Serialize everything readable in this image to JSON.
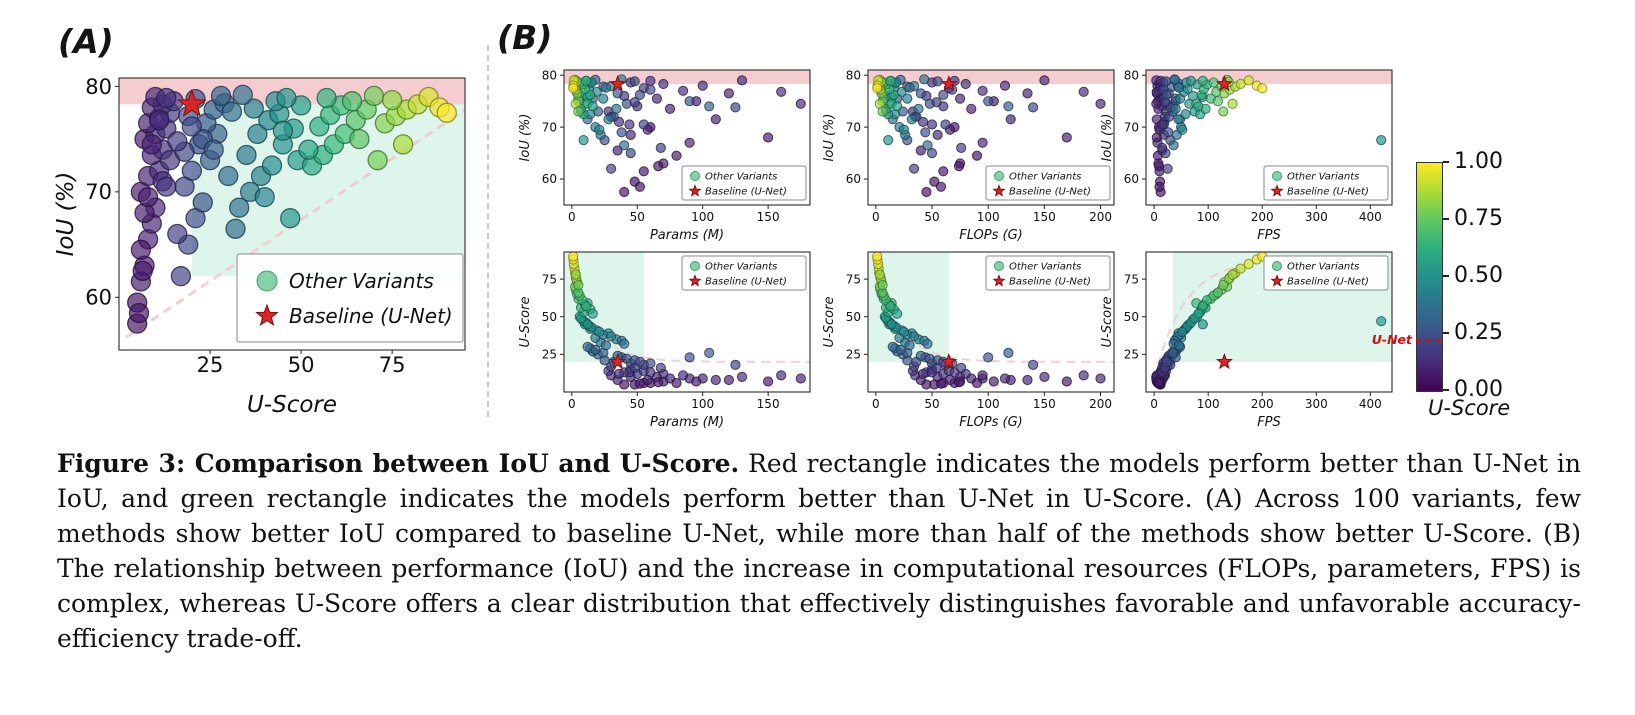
{
  "figure_labels": {
    "a": "(A)",
    "b": "(B)"
  },
  "legend": {
    "other": "Other Variants",
    "baseline": "Baseline (U-Net)"
  },
  "colorbar": {
    "ticks": [
      "1.00",
      "0.75",
      "0.50",
      "0.25",
      "0.00"
    ],
    "label": "U-Score",
    "unet_label": "U-Net",
    "unet_value": 0.22
  },
  "colors": {
    "red_band": "#e0606e",
    "green_band": "#62d29e",
    "curve_dash": "#f0c7ce",
    "star": "#d62728",
    "star_edge": "#7f1010",
    "legend_dot": "#6fca97",
    "legend_dot_edge": "#459a72",
    "divider": "#c9c9c9",
    "unet_line": "#cc1111"
  },
  "caption": {
    "bold": "Figure 3: Comparison between IoU and U-Score.",
    "body": " Red rectangle indicates the models perform better than U-Net in IoU, and green rectangle indicates the models perform better than U-Net in U-Score. (A) Across 100 variants, few methods show better IoU compared to baseline U-Net, while more than half of the methods show better U-Score. (B) The relationship between performance (IoU) and the increase in computational resources (FLOPs, parameters, FPS) is complex, whereas U-Score offers a clear distribution that effectively distinguishes favorable and unfavorable accuracy-efficiency trade-off."
  },
  "chart_data": {
    "type": "scatter",
    "color_label": "U-Score (normalized 0-1, viridis)",
    "color_norm_max": 90,
    "baseline_unet": {
      "uscore": 20,
      "iou": 78.3,
      "params_m": 35,
      "flops_g": 65,
      "fps": 130
    },
    "points_format": [
      "uscore",
      "iou",
      "params_m",
      "flops_g",
      "fps"
    ],
    "points": [
      [
        5,
        57.5,
        40,
        45,
        12
      ],
      [
        6,
        61.5,
        55,
        60,
        10
      ],
      [
        7,
        63,
        70,
        75,
        8
      ],
      [
        8,
        65.5,
        35,
        40,
        15
      ],
      [
        9,
        67,
        90,
        95,
        6
      ],
      [
        10,
        68.5,
        45,
        55,
        18
      ],
      [
        6,
        70,
        60,
        70,
        9
      ],
      [
        8,
        71.5,
        110,
        120,
        5
      ],
      [
        11,
        72,
        30,
        35,
        20
      ],
      [
        9,
        73.5,
        75,
        85,
        8
      ],
      [
        12,
        74,
        50,
        60,
        14
      ],
      [
        7,
        75,
        95,
        105,
        7
      ],
      [
        10,
        75.5,
        65,
        75,
        11
      ],
      [
        13,
        76,
        40,
        45,
        16
      ],
      [
        8,
        76.5,
        120,
        135,
        5
      ],
      [
        11,
        77,
        85,
        95,
        9
      ],
      [
        14,
        77.5,
        55,
        65,
        13
      ],
      [
        9,
        78,
        100,
        115,
        6
      ],
      [
        12,
        78.3,
        70,
        80,
        10
      ],
      [
        15,
        78.6,
        45,
        50,
        17
      ],
      [
        10,
        79,
        130,
        150,
        4
      ],
      [
        13,
        78.9,
        60,
        70,
        12
      ],
      [
        7,
        68,
        150,
        170,
        5
      ],
      [
        9,
        74.5,
        175,
        200,
        4
      ],
      [
        11,
        76.8,
        160,
        185,
        5
      ],
      [
        5,
        59.5,
        48,
        52,
        11
      ],
      [
        6,
        64.5,
        80,
        90,
        7
      ],
      [
        8,
        69.5,
        58,
        66,
        10
      ],
      [
        12,
        71,
        36,
        42,
        19
      ],
      [
        14,
        73,
        28,
        33,
        22
      ],
      [
        17,
        62,
        30,
        34,
        25
      ],
      [
        19,
        65,
        45,
        50,
        21
      ],
      [
        21,
        67.5,
        25,
        28,
        30
      ],
      [
        23,
        69,
        38,
        44,
        26
      ],
      [
        18,
        70.5,
        55,
        62,
        18
      ],
      [
        20,
        72,
        32,
        36,
        28
      ],
      [
        25,
        73,
        20,
        24,
        35
      ],
      [
        22,
        74.5,
        42,
        48,
        24
      ],
      [
        27,
        75.5,
        16,
        19,
        40
      ],
      [
        24,
        76.5,
        35,
        40,
        27
      ],
      [
        19,
        77.2,
        60,
        68,
        17
      ],
      [
        26,
        77.8,
        24,
        28,
        33
      ],
      [
        29,
        78.4,
        14,
        17,
        45
      ],
      [
        21,
        78.8,
        48,
        55,
        22
      ],
      [
        28,
        79.1,
        18,
        22,
        38
      ],
      [
        16,
        66,
        68,
        76,
        15
      ],
      [
        30,
        71.5,
        12,
        15,
        48
      ],
      [
        23,
        75,
        90,
        100,
        40
      ],
      [
        26,
        74,
        105,
        118,
        35
      ],
      [
        18,
        73.8,
        125,
        140,
        30
      ],
      [
        33,
        68.5,
        22,
        26,
        42
      ],
      [
        36,
        70,
        18,
        21,
        50
      ],
      [
        39,
        71.5,
        28,
        32,
        45
      ],
      [
        42,
        72.5,
        14,
        17,
        58
      ],
      [
        35,
        73.5,
        34,
        38,
        40
      ],
      [
        45,
        74.5,
        10,
        12,
        65
      ],
      [
        38,
        75.5,
        24,
        28,
        48
      ],
      [
        48,
        76,
        8,
        10,
        72
      ],
      [
        41,
        76.8,
        19,
        23,
        55
      ],
      [
        44,
        77.4,
        13,
        16,
        62
      ],
      [
        37,
        77.9,
        30,
        34,
        44
      ],
      [
        50,
        78.2,
        6,
        8,
        80
      ],
      [
        43,
        78.6,
        15,
        18,
        60
      ],
      [
        46,
        78.9,
        11,
        13,
        68
      ],
      [
        34,
        79.2,
        38,
        43,
        38
      ],
      [
        47,
        67.5,
        9,
        11,
        420
      ],
      [
        40,
        69.5,
        21,
        25,
        52
      ],
      [
        49,
        73,
        7,
        9,
        75
      ],
      [
        32,
        66.5,
        40,
        46,
        36
      ],
      [
        45,
        75.8,
        12,
        14,
        90
      ],
      [
        53,
        72.5,
        9,
        11,
        85
      ],
      [
        56,
        73.5,
        7,
        9,
        95
      ],
      [
        59,
        74.5,
        12,
        14,
        78
      ],
      [
        62,
        75.5,
        5,
        7,
        105
      ],
      [
        55,
        76.2,
        14,
        16,
        88
      ],
      [
        65,
        76.8,
        4,
        5,
        115
      ],
      [
        58,
        77.3,
        10,
        12,
        92
      ],
      [
        68,
        77.8,
        3,
        4,
        125
      ],
      [
        61,
        78.2,
        8,
        9,
        98
      ],
      [
        64,
        78.6,
        6,
        7,
        110
      ],
      [
        57,
        78.9,
        11,
        13,
        90
      ],
      [
        70,
        79.1,
        2.5,
        3.5,
        135
      ],
      [
        52,
        74,
        16,
        19,
        82
      ],
      [
        66,
        75,
        5,
        6,
        118
      ],
      [
        73,
        76.5,
        4,
        5,
        130
      ],
      [
        76,
        77.2,
        3,
        4,
        140
      ],
      [
        79,
        77.8,
        2.5,
        3,
        150
      ],
      [
        82,
        78.3,
        2,
        2.5,
        160
      ],
      [
        75,
        78.7,
        3.5,
        4.5,
        138
      ],
      [
        85,
        79,
        1.5,
        2,
        175
      ],
      [
        88,
        78,
        1.2,
        1.5,
        190
      ],
      [
        78,
        74.5,
        3,
        3.5,
        145
      ],
      [
        71,
        73,
        5,
        6,
        128
      ],
      [
        90,
        77.5,
        1,
        1.2,
        200
      ],
      [
        5.5,
        58.5,
        52,
        58,
        10
      ],
      [
        6.5,
        62.5,
        66,
        74,
        9
      ],
      [
        13,
        70.5,
        44,
        50,
        15
      ],
      [
        16,
        74.8,
        48,
        54,
        20
      ],
      [
        20,
        76.2,
        52,
        60,
        23
      ],
      [
        31,
        77.6,
        26,
        30,
        46
      ]
    ],
    "panels": [
      {
        "id": "A",
        "xfield": "uscore",
        "yfield": "iou",
        "xlabel": "U-Score",
        "ylabel": "IoU (%)",
        "xlim": [
          0,
          95
        ],
        "ylim": [
          55,
          80.8
        ],
        "xticks": [
          25,
          50,
          75
        ],
        "yticks": [
          60,
          70,
          80
        ],
        "red_region": {
          "y": [
            78.3,
            80.8
          ]
        },
        "green_region": {
          "x": [
            20,
            95
          ],
          "y": [
            62,
            78.3
          ]
        },
        "star": [
          20,
          78.3
        ],
        "curve": {
          "type": "line",
          "from": [
            2,
            56.2
          ],
          "to": [
            95,
            77.8
          ]
        },
        "legend_pos": "br-large"
      },
      {
        "id": "iou-params",
        "xfield": "params",
        "yfield": "iou",
        "xlabel": "Params (M)",
        "ylabel": "IoU (%)",
        "xlim": [
          -6,
          182
        ],
        "ylim": [
          55,
          81
        ],
        "xticks": [
          0,
          50,
          100,
          150
        ],
        "yticks": [
          60,
          70,
          80
        ],
        "red_region": {
          "y": [
            78.3,
            81
          ]
        },
        "star": [
          35,
          78.3
        ],
        "legend_pos": "br"
      },
      {
        "id": "iou-flops",
        "xfield": "flops",
        "yfield": "iou",
        "xlabel": "FLOPs (G)",
        "ylabel": "IoU (%)",
        "xlim": [
          -7,
          212
        ],
        "ylim": [
          55,
          81
        ],
        "xticks": [
          0,
          50,
          100,
          150,
          200
        ],
        "yticks": [
          60,
          70,
          80
        ],
        "red_region": {
          "y": [
            78.3,
            81
          ]
        },
        "star": [
          65,
          78.3
        ],
        "legend_pos": "br"
      },
      {
        "id": "iou-fps",
        "xfield": "fps",
        "yfield": "iou",
        "xlabel": "FPS",
        "ylabel": "IoU (%)",
        "xlim": [
          -15,
          440
        ],
        "ylim": [
          55,
          81
        ],
        "xticks": [
          0,
          100,
          200,
          300,
          400
        ],
        "yticks": [
          60,
          70,
          80
        ],
        "red_region": {
          "y": [
            78.3,
            81
          ]
        },
        "star": [
          130,
          78.3
        ],
        "legend_pos": "br"
      },
      {
        "id": "uscore-params",
        "xfield": "params",
        "yfield": "uscore",
        "xlabel": "Params (M)",
        "ylabel": "U-Score",
        "xlim": [
          -6,
          182
        ],
        "ylim": [
          0,
          93
        ],
        "xticks": [
          0,
          50,
          100,
          150
        ],
        "yticks": [
          25,
          50,
          75
        ],
        "green_region": {
          "x": [
            -6,
            55
          ],
          "y": [
            20,
            93
          ]
        },
        "star": [
          35,
          20
        ],
        "curve": {
          "type": "decay",
          "base": 20,
          "amp": 62,
          "tau": 18
        },
        "legend_pos": "tr"
      },
      {
        "id": "uscore-flops",
        "xfield": "flops",
        "yfield": "uscore",
        "xlabel": "FLOPs (G)",
        "ylabel": "U-Score",
        "xlim": [
          -7,
          212
        ],
        "ylim": [
          0,
          93
        ],
        "xticks": [
          0,
          50,
          100,
          150,
          200
        ],
        "yticks": [
          25,
          50,
          75
        ],
        "green_region": {
          "x": [
            -7,
            65
          ],
          "y": [
            20,
            93
          ]
        },
        "star": [
          65,
          20
        ],
        "curve": {
          "type": "decay",
          "base": 20,
          "amp": 62,
          "tau": 22
        },
        "legend_pos": "tr"
      },
      {
        "id": "uscore-fps",
        "xfield": "fps",
        "yfield": "uscore",
        "xlabel": "FPS",
        "ylabel": "U-Score",
        "xlim": [
          -15,
          440
        ],
        "ylim": [
          0,
          93
        ],
        "xticks": [
          0,
          100,
          200,
          300,
          400
        ],
        "yticks": [
          25,
          50,
          75
        ],
        "green_region": {
          "x": [
            35,
            440
          ],
          "y": [
            20,
            93
          ]
        },
        "star": [
          130,
          20
        ],
        "curve": {
          "type": "rise",
          "base": 8,
          "amp": 80,
          "tau": 55,
          "xmax": 150
        },
        "legend_pos": "tr"
      }
    ]
  }
}
